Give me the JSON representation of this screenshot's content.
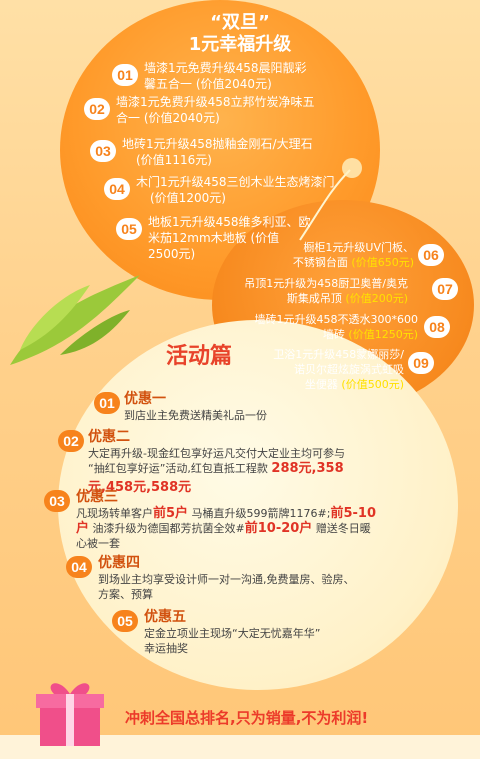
{
  "header": {
    "quote": "“双旦”",
    "title": "1元幸福升级"
  },
  "upgrades_left": [
    {
      "num": "01",
      "line1": "墙漆1元免费升级458晨阳靓彩",
      "line2": "馨五合一",
      "price": "(价值2040元)"
    },
    {
      "num": "02",
      "line1": "墙漆1元免费升级458立邦竹炭净味五",
      "line2": "合一",
      "price": "(价值2040元)"
    },
    {
      "num": "03",
      "line1": "地砖1元升级458抛釉金刚石/大理石",
      "line2": "",
      "price": "(价值1116元)"
    },
    {
      "num": "04",
      "line1": "木门1元升级458三创木业生态烤漆门",
      "line2": "",
      "price": "(价值1200元)"
    },
    {
      "num": "05",
      "line1": "地板1元升级458维多利亚、欧",
      "line2": "米茄12mm木地板",
      "price": "(价值",
      "price2": "2500元)"
    }
  ],
  "upgrades_right": [
    {
      "num": "06",
      "line1": "橱柜1元升级UV门板、",
      "line2": "不锈钢台面",
      "price": "(价值650元)"
    },
    {
      "num": "07",
      "line1": "吊顶1元升级为458厨卫奥普/奥克",
      "line2": "斯集成吊顶",
      "price": "(价值200元)"
    },
    {
      "num": "08",
      "line1": "墙砖1元升级458不透水300*600",
      "line2": "墙砖",
      "price": "(价值1250元)"
    },
    {
      "num": "09",
      "line1": "卫浴1元升级458蒙娜丽莎/",
      "line2": "诺贝尔超炫旋涡式虹吸",
      "line3": "坐便器",
      "price": "(价值500元)"
    }
  ],
  "activity": {
    "title": "活动篇"
  },
  "offers": [
    {
      "num": "01",
      "title": "优惠一",
      "text": "到店业主免费送精美礼品一份"
    },
    {
      "num": "02",
      "title": "优惠二",
      "text1": "大定再升级-现金红包享好运凡交付大定业主均可参与",
      "text2": "“抽红包享好运”活动,红包直抵工程款",
      "hl1": "288元,358",
      "hl2": "元,458元,588元"
    },
    {
      "num": "03",
      "title": "优惠三",
      "t1": "凡现场转单客户",
      "h1": "前5户",
      "t2": "马桶直升级599箭牌1176#;",
      "h2": "前5-10",
      "h3": "户",
      "t3": "油漆升级为德国都芳抗菌全效#",
      "h4": "前10-20户",
      "t4": "赠送冬日暖",
      "t5": "心被一套"
    },
    {
      "num": "04",
      "title": "优惠四",
      "text1": "到场业主均享受设计师一对一沟通,免费量房、验房、",
      "text2": "方案、预算"
    },
    {
      "num": "05",
      "title": "优惠五",
      "text1": "定金立项业主现场“大定无忧嘉年华”",
      "text2": "幸运抽奖"
    }
  ],
  "slogan": "冲刺全国总排名,只为销量,不为利润!"
}
